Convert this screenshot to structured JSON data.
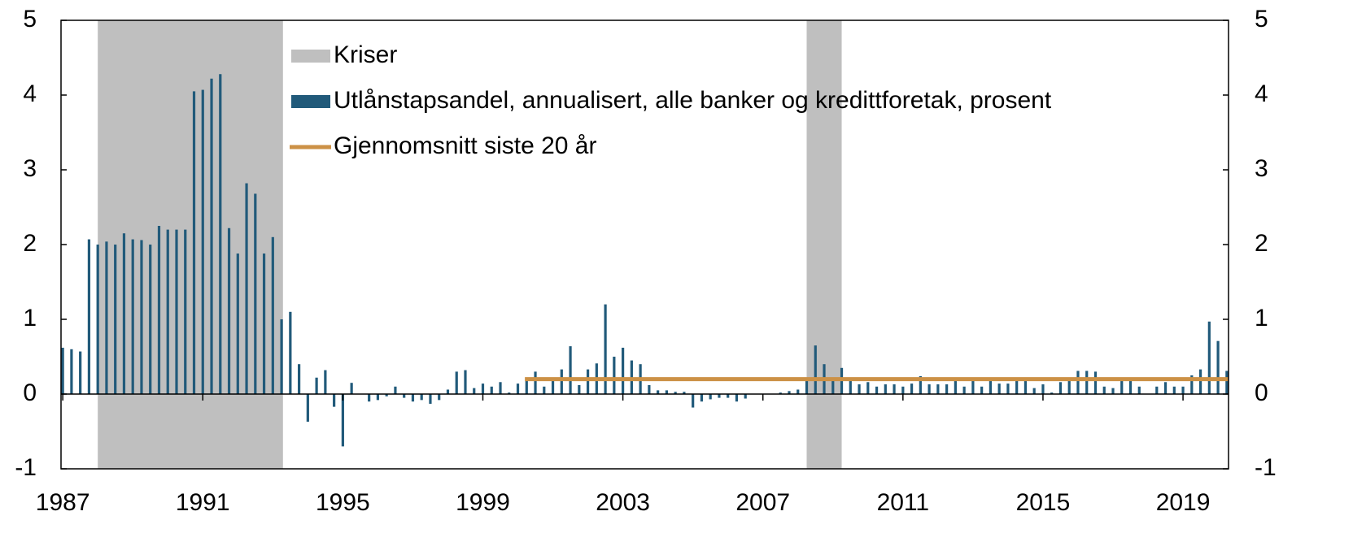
{
  "chart_data": {
    "type": "bar",
    "x": [
      1987,
      1987.25,
      1987.5,
      1987.75,
      1988,
      1988.25,
      1988.5,
      1988.75,
      1989,
      1989.25,
      1989.5,
      1989.75,
      1990,
      1990.25,
      1990.5,
      1990.75,
      1991,
      1991.25,
      1991.5,
      1991.75,
      1992,
      1992.25,
      1992.5,
      1992.75,
      1993,
      1993.25,
      1993.5,
      1993.75,
      1994,
      1994.25,
      1994.5,
      1994.75,
      1995,
      1995.25,
      1995.5,
      1995.75,
      1996,
      1996.25,
      1996.5,
      1996.75,
      1997,
      1997.25,
      1997.5,
      1997.75,
      1998,
      1998.25,
      1998.5,
      1998.75,
      1999,
      1999.25,
      1999.5,
      1999.75,
      2000,
      2000.25,
      2000.5,
      2000.75,
      2001,
      2001.25,
      2001.5,
      2001.75,
      2002,
      2002.25,
      2002.5,
      2002.75,
      2003,
      2003.25,
      2003.5,
      2003.75,
      2004,
      2004.25,
      2004.5,
      2004.75,
      2005,
      2005.25,
      2005.5,
      2005.75,
      2006,
      2006.25,
      2006.5,
      2006.75,
      2007,
      2007.25,
      2007.5,
      2007.75,
      2008,
      2008.25,
      2008.5,
      2008.75,
      2009,
      2009.25,
      2009.5,
      2009.75,
      2010,
      2010.25,
      2010.5,
      2010.75,
      2011,
      2011.25,
      2011.5,
      2011.75,
      2012,
      2012.25,
      2012.5,
      2012.75,
      2013,
      2013.25,
      2013.5,
      2013.75,
      2014,
      2014.25,
      2014.5,
      2014.75,
      2015,
      2015.25,
      2015.5,
      2015.75,
      2016,
      2016.25,
      2016.5,
      2016.75,
      2017,
      2017.25,
      2017.5,
      2017.75,
      2018,
      2018.25,
      2018.5,
      2018.75,
      2019,
      2019.25,
      2019.5,
      2019.75,
      2020,
      2020.25
    ],
    "series": [
      {
        "name": "Utlånstapsandel, annualisert, alle banker og kredittforetak, prosent",
        "color": "#215a7a",
        "values": [
          0.62,
          0.6,
          0.57,
          2.07,
          2.0,
          2.04,
          2.0,
          2.15,
          2.07,
          2.06,
          2.0,
          2.25,
          2.2,
          2.2,
          2.2,
          4.05,
          4.07,
          4.22,
          4.28,
          2.22,
          1.88,
          2.82,
          2.68,
          1.88,
          2.1,
          1.0,
          1.1,
          0.4,
          -0.37,
          0.22,
          0.32,
          -0.17,
          -0.7,
          0.15,
          0.0,
          -0.1,
          -0.08,
          -0.03,
          0.1,
          -0.05,
          -0.1,
          -0.08,
          -0.13,
          -0.08,
          0.06,
          0.3,
          0.32,
          0.08,
          0.14,
          0.1,
          0.16,
          0.02,
          0.14,
          0.22,
          0.3,
          0.1,
          0.2,
          0.33,
          0.64,
          0.12,
          0.33,
          0.41,
          1.2,
          0.5,
          0.62,
          0.45,
          0.4,
          0.12,
          0.05,
          0.05,
          0.03,
          0.03,
          -0.18,
          -0.1,
          -0.07,
          -0.05,
          -0.05,
          -0.1,
          -0.06,
          0.0,
          0.0,
          0.0,
          0.02,
          0.04,
          0.06,
          0.2,
          0.65,
          0.4,
          0.22,
          0.35,
          0.2,
          0.13,
          0.16,
          0.1,
          0.13,
          0.13,
          0.1,
          0.14,
          0.24,
          0.13,
          0.13,
          0.13,
          0.18,
          0.1,
          0.18,
          0.1,
          0.18,
          0.14,
          0.14,
          0.18,
          0.18,
          0.08,
          0.13,
          0.02,
          0.16,
          0.2,
          0.31,
          0.31,
          0.3,
          0.1,
          0.08,
          0.22,
          0.2,
          0.1,
          0.0,
          0.1,
          0.16,
          0.1,
          0.1,
          0.25,
          0.33,
          0.97,
          0.71,
          0.31
        ]
      }
    ],
    "crises": {
      "name": "Kriser",
      "color": "#bfbfbf",
      "ranges": [
        [
          1988,
          1993.29
        ],
        [
          2008.25,
          2009.25
        ]
      ]
    },
    "average": {
      "name": "Gjennomsnitt siste 20 år",
      "color": "#cc9146",
      "x": [
        2000.2,
        2020.3
      ],
      "values": [
        0.2,
        0.2
      ]
    },
    "xlim": [
      1986.95,
      2020.3
    ],
    "xticks": [
      1987,
      1991,
      1995,
      1999,
      2003,
      2007,
      2011,
      2015,
      2019
    ],
    "ylim": [
      -1,
      5
    ],
    "yticks": [
      -1,
      0,
      1,
      2,
      3,
      4,
      5
    ],
    "y2lim": [
      -1,
      5
    ],
    "y2ticks": [
      -1,
      0,
      1,
      2,
      3,
      4,
      5
    ]
  }
}
